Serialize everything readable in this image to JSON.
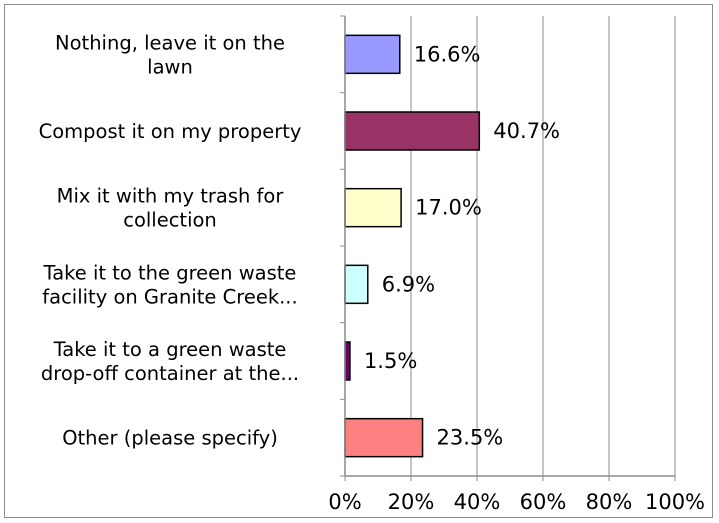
{
  "chart_data": {
    "type": "bar",
    "orientation": "horizontal",
    "categories": [
      [
        "Nothing, leave it on the",
        "lawn"
      ],
      [
        "Compost it on my property"
      ],
      [
        "Mix it with my trash for",
        "collection"
      ],
      [
        "Take it to the green waste",
        "facility on Granite Creek..."
      ],
      [
        "Take it to a green waste",
        "drop-off container at the..."
      ],
      [
        "Other (please specify)"
      ]
    ],
    "values": [
      16.6,
      40.7,
      17.0,
      6.9,
      1.5,
      23.5
    ],
    "value_labels": [
      "16.6%",
      "40.7%",
      "17.0%",
      "6.9%",
      "1.5%",
      "23.5%"
    ],
    "colors": [
      "#9999ff",
      "#993366",
      "#ffffcc",
      "#ccffff",
      "#660066",
      "#ff8080"
    ],
    "xlim": [
      0,
      100
    ],
    "x_ticks": [
      0,
      20,
      40,
      60,
      80,
      100
    ],
    "x_tick_labels": [
      "0%",
      "20%",
      "40%",
      "60%",
      "80%",
      "100%"
    ],
    "grid": "vertical",
    "legend": "none"
  }
}
